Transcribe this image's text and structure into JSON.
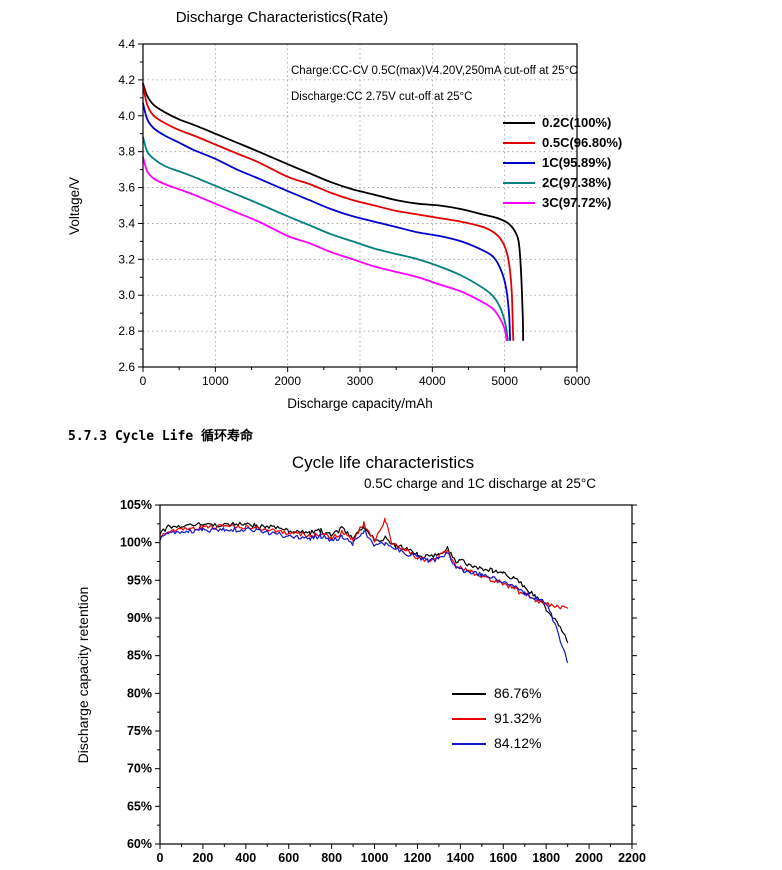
{
  "page": {
    "background": "#ffffff",
    "section_heading": "5.7.3 Cycle Life 循环寿命"
  },
  "chart_data": [
    {
      "type": "line",
      "name": "discharge-rate",
      "title": "Discharge Characteristics(Rate)",
      "xlabel": "Discharge capacity/mAh",
      "ylabel": "Voltage/V",
      "xlim": [
        0,
        6000
      ],
      "ylim": [
        2.6,
        4.4
      ],
      "xticks": [
        0,
        1000,
        2000,
        3000,
        4000,
        5000,
        6000
      ],
      "xtick_labels": [
        "0",
        "1000",
        "2000",
        "3000",
        "4000",
        "5000",
        "6000"
      ],
      "yticks": [
        2.6,
        2.8,
        3.0,
        3.2,
        3.4,
        3.6,
        3.8,
        4.0,
        4.2,
        4.4
      ],
      "ytick_labels": [
        "2.6",
        "2.8",
        "3.0",
        "3.2",
        "3.4",
        "3.6",
        "3.8",
        "4.0",
        "4.2",
        "4.4"
      ],
      "grid": true,
      "legend_position": "inside-right",
      "annotation": [
        "Charge:CC-CV 0.5C(max)V4.20V,250mA cut-off at 25°C",
        "Discharge:CC 2.75V cut-off at 25°C"
      ],
      "series": [
        {
          "name": "0.2C(100%)",
          "color": "#000000",
          "points": [
            [
              0,
              4.18
            ],
            [
              60,
              4.11
            ],
            [
              150,
              4.06
            ],
            [
              300,
              4.02
            ],
            [
              500,
              3.98
            ],
            [
              700,
              3.95
            ],
            [
              1000,
              3.9
            ],
            [
              1300,
              3.85
            ],
            [
              1600,
              3.8
            ],
            [
              2000,
              3.73
            ],
            [
              2300,
              3.68
            ],
            [
              2600,
              3.63
            ],
            [
              2900,
              3.59
            ],
            [
              3200,
              3.56
            ],
            [
              3500,
              3.53
            ],
            [
              3800,
              3.51
            ],
            [
              4100,
              3.5
            ],
            [
              4400,
              3.48
            ],
            [
              4700,
              3.45
            ],
            [
              4900,
              3.43
            ],
            [
              5050,
              3.4
            ],
            [
              5150,
              3.35
            ],
            [
              5200,
              3.28
            ],
            [
              5230,
              3.1
            ],
            [
              5250,
              2.88
            ],
            [
              5255,
              2.75
            ]
          ]
        },
        {
          "name": "0.5C(96.80%)",
          "color": "#e00000",
          "points": [
            [
              0,
              4.17
            ],
            [
              60,
              4.06
            ],
            [
              150,
              4.0
            ],
            [
              300,
              3.96
            ],
            [
              500,
              3.92
            ],
            [
              700,
              3.89
            ],
            [
              1000,
              3.84
            ],
            [
              1300,
              3.79
            ],
            [
              1600,
              3.74
            ],
            [
              2000,
              3.66
            ],
            [
              2300,
              3.62
            ],
            [
              2600,
              3.57
            ],
            [
              2900,
              3.53
            ],
            [
              3200,
              3.5
            ],
            [
              3500,
              3.47
            ],
            [
              3800,
              3.45
            ],
            [
              4100,
              3.43
            ],
            [
              4400,
              3.41
            ],
            [
              4700,
              3.38
            ],
            [
              4850,
              3.35
            ],
            [
              4950,
              3.31
            ],
            [
              5020,
              3.25
            ],
            [
              5070,
              3.15
            ],
            [
              5100,
              3.0
            ],
            [
              5115,
              2.8
            ],
            [
              5120,
              2.75
            ]
          ]
        },
        {
          "name": "1C(95.89%)",
          "color": "#0000cd",
          "points": [
            [
              0,
              4.07
            ],
            [
              60,
              3.98
            ],
            [
              150,
              3.93
            ],
            [
              300,
              3.89
            ],
            [
              500,
              3.85
            ],
            [
              700,
              3.81
            ],
            [
              1000,
              3.76
            ],
            [
              1300,
              3.7
            ],
            [
              1600,
              3.65
            ],
            [
              2000,
              3.58
            ],
            [
              2300,
              3.53
            ],
            [
              2600,
              3.48
            ],
            [
              2900,
              3.44
            ],
            [
              3200,
              3.41
            ],
            [
              3500,
              3.38
            ],
            [
              3800,
              3.35
            ],
            [
              4100,
              3.33
            ],
            [
              4400,
              3.3
            ],
            [
              4700,
              3.25
            ],
            [
              4850,
              3.21
            ],
            [
              4950,
              3.14
            ],
            [
              5020,
              3.04
            ],
            [
              5060,
              2.9
            ],
            [
              5075,
              2.75
            ]
          ]
        },
        {
          "name": "2C(97.38%)",
          "color": "#00807d",
          "points": [
            [
              0,
              3.88
            ],
            [
              60,
              3.8
            ],
            [
              150,
              3.76
            ],
            [
              300,
              3.72
            ],
            [
              500,
              3.69
            ],
            [
              700,
              3.66
            ],
            [
              1000,
              3.61
            ],
            [
              1300,
              3.56
            ],
            [
              1600,
              3.51
            ],
            [
              2000,
              3.44
            ],
            [
              2300,
              3.39
            ],
            [
              2600,
              3.34
            ],
            [
              2900,
              3.3
            ],
            [
              3200,
              3.26
            ],
            [
              3500,
              3.23
            ],
            [
              3800,
              3.2
            ],
            [
              4100,
              3.16
            ],
            [
              4400,
              3.11
            ],
            [
              4700,
              3.04
            ],
            [
              4850,
              2.99
            ],
            [
              4950,
              2.92
            ],
            [
              5010,
              2.84
            ],
            [
              5040,
              2.76
            ],
            [
              5045,
              2.75
            ]
          ]
        },
        {
          "name": "3C(97.72%)",
          "color": "#ff00ff",
          "points": [
            [
              0,
              3.77
            ],
            [
              60,
              3.69
            ],
            [
              150,
              3.65
            ],
            [
              300,
              3.62
            ],
            [
              500,
              3.59
            ],
            [
              700,
              3.56
            ],
            [
              1000,
              3.51
            ],
            [
              1300,
              3.46
            ],
            [
              1600,
              3.41
            ],
            [
              2000,
              3.33
            ],
            [
              2300,
              3.29
            ],
            [
              2600,
              3.24
            ],
            [
              2900,
              3.2
            ],
            [
              3200,
              3.16
            ],
            [
              3500,
              3.13
            ],
            [
              3800,
              3.1
            ],
            [
              4100,
              3.06
            ],
            [
              4400,
              3.02
            ],
            [
              4700,
              2.96
            ],
            [
              4850,
              2.92
            ],
            [
              4950,
              2.86
            ],
            [
              5000,
              2.81
            ],
            [
              5020,
              2.77
            ],
            [
              5025,
              2.75
            ]
          ]
        }
      ]
    },
    {
      "type": "line",
      "name": "cycle-life",
      "title": "Cycle life characteristics",
      "subtitle": "0.5C charge and 1C discharge at 25°C",
      "xlabel": "",
      "ylabel": "Discharge capacity retention",
      "xlim": [
        0,
        2200
      ],
      "ylim": [
        60,
        105
      ],
      "xticks": [
        0,
        200,
        400,
        600,
        800,
        1000,
        1200,
        1400,
        1600,
        1800,
        2000,
        2200
      ],
      "xtick_labels": [
        "0",
        "200",
        "400",
        "600",
        "800",
        "1000",
        "1200",
        "1400",
        "1600",
        "1800",
        "2000",
        "2200"
      ],
      "yticks": [
        60,
        65,
        70,
        75,
        80,
        85,
        90,
        95,
        100,
        105
      ],
      "ytick_labels": [
        "60%",
        "65%",
        "70%",
        "75%",
        "80%",
        "85%",
        "90%",
        "95%",
        "100%",
        "105%"
      ],
      "grid": false,
      "legend_position": "inside-right",
      "series": [
        {
          "name": "86.76%",
          "color": "#000000",
          "points": [
            [
              0,
              101.0
            ],
            [
              30,
              102.0
            ],
            [
              100,
              102.3
            ],
            [
              200,
              102.4
            ],
            [
              300,
              102.4
            ],
            [
              400,
              102.6
            ],
            [
              450,
              102.2
            ],
            [
              500,
              102.1
            ],
            [
              600,
              101.6
            ],
            [
              700,
              101.3
            ],
            [
              750,
              101.6
            ],
            [
              800,
              100.9
            ],
            [
              850,
              101.9
            ],
            [
              900,
              100.6
            ],
            [
              950,
              102.2
            ],
            [
              1000,
              100.3
            ],
            [
              1050,
              100.6
            ],
            [
              1100,
              99.6
            ],
            [
              1150,
              99.2
            ],
            [
              1200,
              98.4
            ],
            [
              1250,
              98.1
            ],
            [
              1300,
              98.3
            ],
            [
              1340,
              99.4
            ],
            [
              1380,
              97.2
            ],
            [
              1400,
              97.6
            ],
            [
              1450,
              96.9
            ],
            [
              1500,
              96.6
            ],
            [
              1550,
              96.3
            ],
            [
              1600,
              95.9
            ],
            [
              1650,
              95.2
            ],
            [
              1700,
              94.2
            ],
            [
              1750,
              92.8
            ],
            [
              1800,
              91.2
            ],
            [
              1850,
              89.6
            ],
            [
              1880,
              88.0
            ],
            [
              1900,
              86.76
            ]
          ]
        },
        {
          "name": "91.32%",
          "color": "#e60000",
          "points": [
            [
              0,
              100.6
            ],
            [
              30,
              101.4
            ],
            [
              100,
              101.9
            ],
            [
              200,
              102.0
            ],
            [
              300,
              102.1
            ],
            [
              400,
              102.0
            ],
            [
              500,
              101.7
            ],
            [
              600,
              101.3
            ],
            [
              700,
              100.9
            ],
            [
              750,
              101.2
            ],
            [
              800,
              100.5
            ],
            [
              850,
              101.4
            ],
            [
              900,
              100.3
            ],
            [
              950,
              102.6
            ],
            [
              1000,
              100.1
            ],
            [
              1050,
              103.1
            ],
            [
              1080,
              99.9
            ],
            [
              1100,
              99.7
            ],
            [
              1150,
              99.1
            ],
            [
              1200,
              98.0
            ],
            [
              1250,
              97.6
            ],
            [
              1300,
              98.1
            ],
            [
              1340,
              98.9
            ],
            [
              1380,
              96.8
            ],
            [
              1400,
              96.7
            ],
            [
              1450,
              96.1
            ],
            [
              1500,
              95.6
            ],
            [
              1550,
              95.1
            ],
            [
              1600,
              94.6
            ],
            [
              1650,
              93.9
            ],
            [
              1700,
              93.1
            ],
            [
              1750,
              92.4
            ],
            [
              1800,
              91.9
            ],
            [
              1850,
              91.6
            ],
            [
              1900,
              91.32
            ]
          ]
        },
        {
          "name": "84.12%",
          "color": "#1414cc",
          "points": [
            [
              0,
              100.4
            ],
            [
              30,
              101.1
            ],
            [
              100,
              101.5
            ],
            [
              200,
              101.6
            ],
            [
              300,
              101.7
            ],
            [
              400,
              101.7
            ],
            [
              500,
              101.4
            ],
            [
              600,
              100.9
            ],
            [
              700,
              100.6
            ],
            [
              750,
              100.9
            ],
            [
              800,
              100.2
            ],
            [
              850,
              100.9
            ],
            [
              900,
              99.9
            ],
            [
              950,
              101.6
            ],
            [
              1000,
              99.6
            ],
            [
              1050,
              99.9
            ],
            [
              1100,
              99.1
            ],
            [
              1150,
              98.6
            ],
            [
              1200,
              98.1
            ],
            [
              1250,
              97.6
            ],
            [
              1300,
              97.9
            ],
            [
              1340,
              98.6
            ],
            [
              1380,
              96.5
            ],
            [
              1400,
              96.4
            ],
            [
              1450,
              96.1
            ],
            [
              1500,
              95.7
            ],
            [
              1550,
              95.3
            ],
            [
              1600,
              94.9
            ],
            [
              1650,
              94.1
            ],
            [
              1700,
              93.3
            ],
            [
              1750,
              92.6
            ],
            [
              1800,
              92.1
            ],
            [
              1850,
              88.5
            ],
            [
              1880,
              86.0
            ],
            [
              1900,
              84.12
            ]
          ]
        }
      ]
    }
  ]
}
